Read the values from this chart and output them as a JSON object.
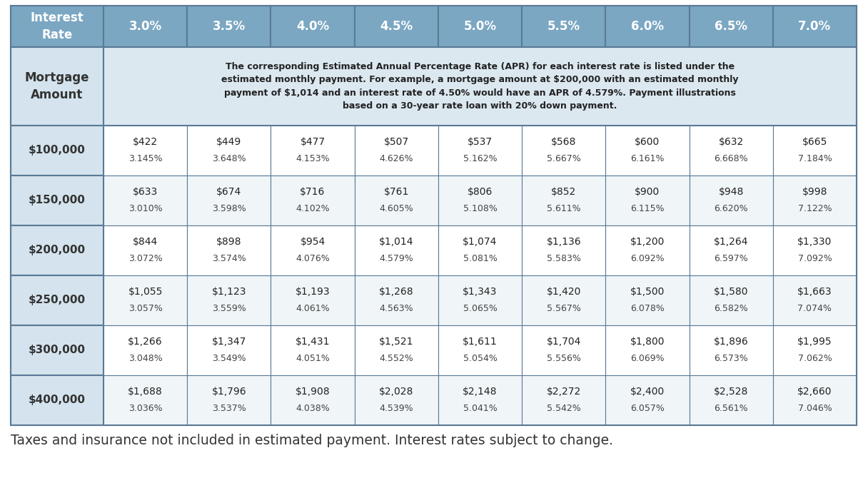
{
  "interest_rates": [
    "3.0%",
    "3.5%",
    "4.0%",
    "4.5%",
    "5.0%",
    "5.5%",
    "6.0%",
    "6.5%",
    "7.0%"
  ],
  "mortgage_amounts": [
    "$100,000",
    "$150,000",
    "$200,000",
    "$250,000",
    "$300,000",
    "$400,000"
  ],
  "cell_data": [
    [
      [
        "$422",
        "3.145%"
      ],
      [
        "$449",
        "3.648%"
      ],
      [
        "$477",
        "4.153%"
      ],
      [
        "$507",
        "4.626%"
      ],
      [
        "$537",
        "5.162%"
      ],
      [
        "$568",
        "5.667%"
      ],
      [
        "$600",
        "6.161%"
      ],
      [
        "$632",
        "6.668%"
      ],
      [
        "$665",
        "7.184%"
      ]
    ],
    [
      [
        "$633",
        "3.010%"
      ],
      [
        "$674",
        "3.598%"
      ],
      [
        "$716",
        "4.102%"
      ],
      [
        "$761",
        "4.605%"
      ],
      [
        "$806",
        "5.108%"
      ],
      [
        "$852",
        "5.611%"
      ],
      [
        "$900",
        "6.115%"
      ],
      [
        "$948",
        "6.620%"
      ],
      [
        "$998",
        "7.122%"
      ]
    ],
    [
      [
        "$844",
        "3.072%"
      ],
      [
        "$898",
        "3.574%"
      ],
      [
        "$954",
        "4.076%"
      ],
      [
        "$1,014",
        "4.579%"
      ],
      [
        "$1,074",
        "5.081%"
      ],
      [
        "$1,136",
        "5.583%"
      ],
      [
        "$1,200",
        "6.092%"
      ],
      [
        "$1,264",
        "6.597%"
      ],
      [
        "$1,330",
        "7.092%"
      ]
    ],
    [
      [
        "$1,055",
        "3.057%"
      ],
      [
        "$1,123",
        "3.559%"
      ],
      [
        "$1,193",
        "4.061%"
      ],
      [
        "$1,268",
        "4.563%"
      ],
      [
        "$1,343",
        "5.065%"
      ],
      [
        "$1,420",
        "5.567%"
      ],
      [
        "$1,500",
        "6.078%"
      ],
      [
        "$1,580",
        "6.582%"
      ],
      [
        "$1,663",
        "7.074%"
      ]
    ],
    [
      [
        "$1,266",
        "3.048%"
      ],
      [
        "$1,347",
        "3.549%"
      ],
      [
        "$1,431",
        "4.051%"
      ],
      [
        "$1,521",
        "4.552%"
      ],
      [
        "$1,611",
        "5.054%"
      ],
      [
        "$1,704",
        "5.556%"
      ],
      [
        "$1,800",
        "6.069%"
      ],
      [
        "$1,896",
        "6.573%"
      ],
      [
        "$1,995",
        "7.062%"
      ]
    ],
    [
      [
        "$1,688",
        "3.036%"
      ],
      [
        "$1,796",
        "3.537%"
      ],
      [
        "$1,908",
        "4.038%"
      ],
      [
        "$2,028",
        "4.539%"
      ],
      [
        "$2,148",
        "5.041%"
      ],
      [
        "$2,272",
        "5.542%"
      ],
      [
        "$2,400",
        "6.057%"
      ],
      [
        "$2,528",
        "6.561%"
      ],
      [
        "$2,660",
        "7.046%"
      ]
    ]
  ],
  "note_text": "Taxes and insurance not included in estimated payment. Interest rates subject to change.",
  "header_bg": "#7ba7c2",
  "header_text": "#ffffff",
  "desc_bg": "#dce8f0",
  "left_col_bg": "#d4e3ed",
  "row_bg_odd": "#ffffff",
  "row_bg_even": "#f0f5f8",
  "border_color": "#5a7a96",
  "data_border_color": "#b0c4d4",
  "description_text": "The corresponding Estimated Annual Percentage Rate (APR) for each interest rate is listed under the\nestimated monthly payment. For example, a mortgage amount at $200,000 with an estimated monthly\npayment of $1,014 and an interest rate of 4.50% would have an APR of 4.579%. Payment illustrations\nbased on a 30-year rate loan with 20% down payment.",
  "col_header_label": "Interest\nRate",
  "row_header_label": "Mortgage\nAmount",
  "note_fontsize": 13.5,
  "header_fontsize": 12,
  "rate_fontsize": 12,
  "mortgage_fontsize": 11,
  "payment_fontsize": 10,
  "apr_fontsize": 9,
  "desc_fontsize": 9
}
